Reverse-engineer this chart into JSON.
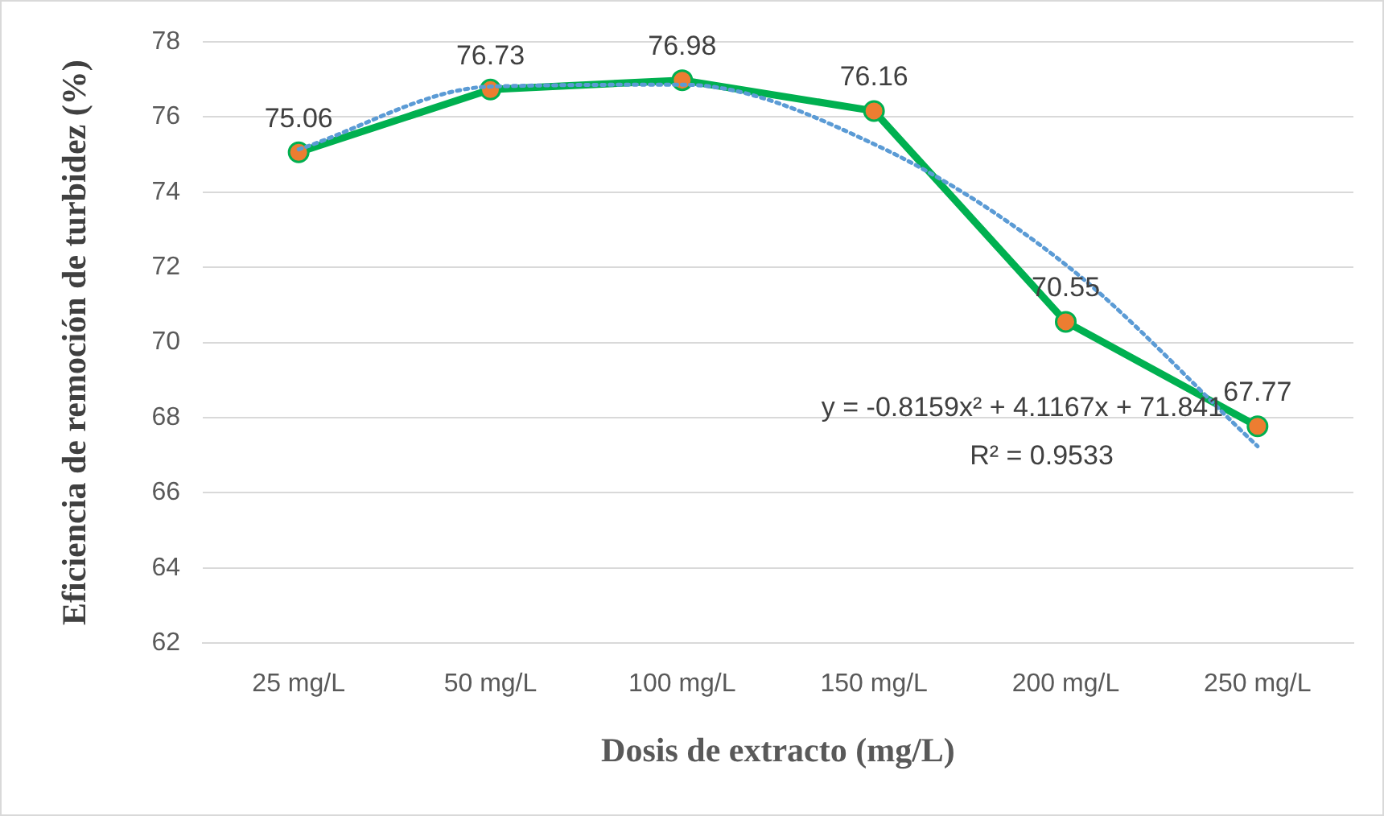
{
  "chart_data": {
    "type": "line",
    "xlabel": "Dosis de extracto (mg/L)",
    "ylabel": "Eficiencia de remoción de turbidez (%)",
    "categories": [
      "25 mg/L",
      "50 mg/L",
      "100 mg/L",
      "150 mg/L",
      "200 mg/L",
      "250 mg/L"
    ],
    "series": [
      {
        "color": "#00b050",
        "colors": [
          "#ed7d31",
          "#ed7d31",
          "#ed7d31",
          "#ed7d31",
          "#ed7d31",
          "#ed7d31"
        ],
        "marker": "circle",
        "line_style": "solid",
        "data_labels": true,
        "values": [
          75.06,
          76.73,
          76.98,
          76.16,
          70.55,
          67.77
        ]
      },
      {
        "color": "#5b9bd5",
        "marker": "none",
        "line_style": "dotted",
        "values": [
          75.14,
          76.81,
          76.86,
          75.28,
          72.07,
          67.24
        ]
      }
    ],
    "ylim": [
      62,
      78
    ],
    "yticks": [
      62,
      64,
      66,
      68,
      70,
      72,
      74,
      76,
      78
    ],
    "grid": "y",
    "legend": false,
    "annotations": [
      "y = -0.8159x² + 4.1167x + 71.841",
      "R² = 0.9533"
    ]
  }
}
